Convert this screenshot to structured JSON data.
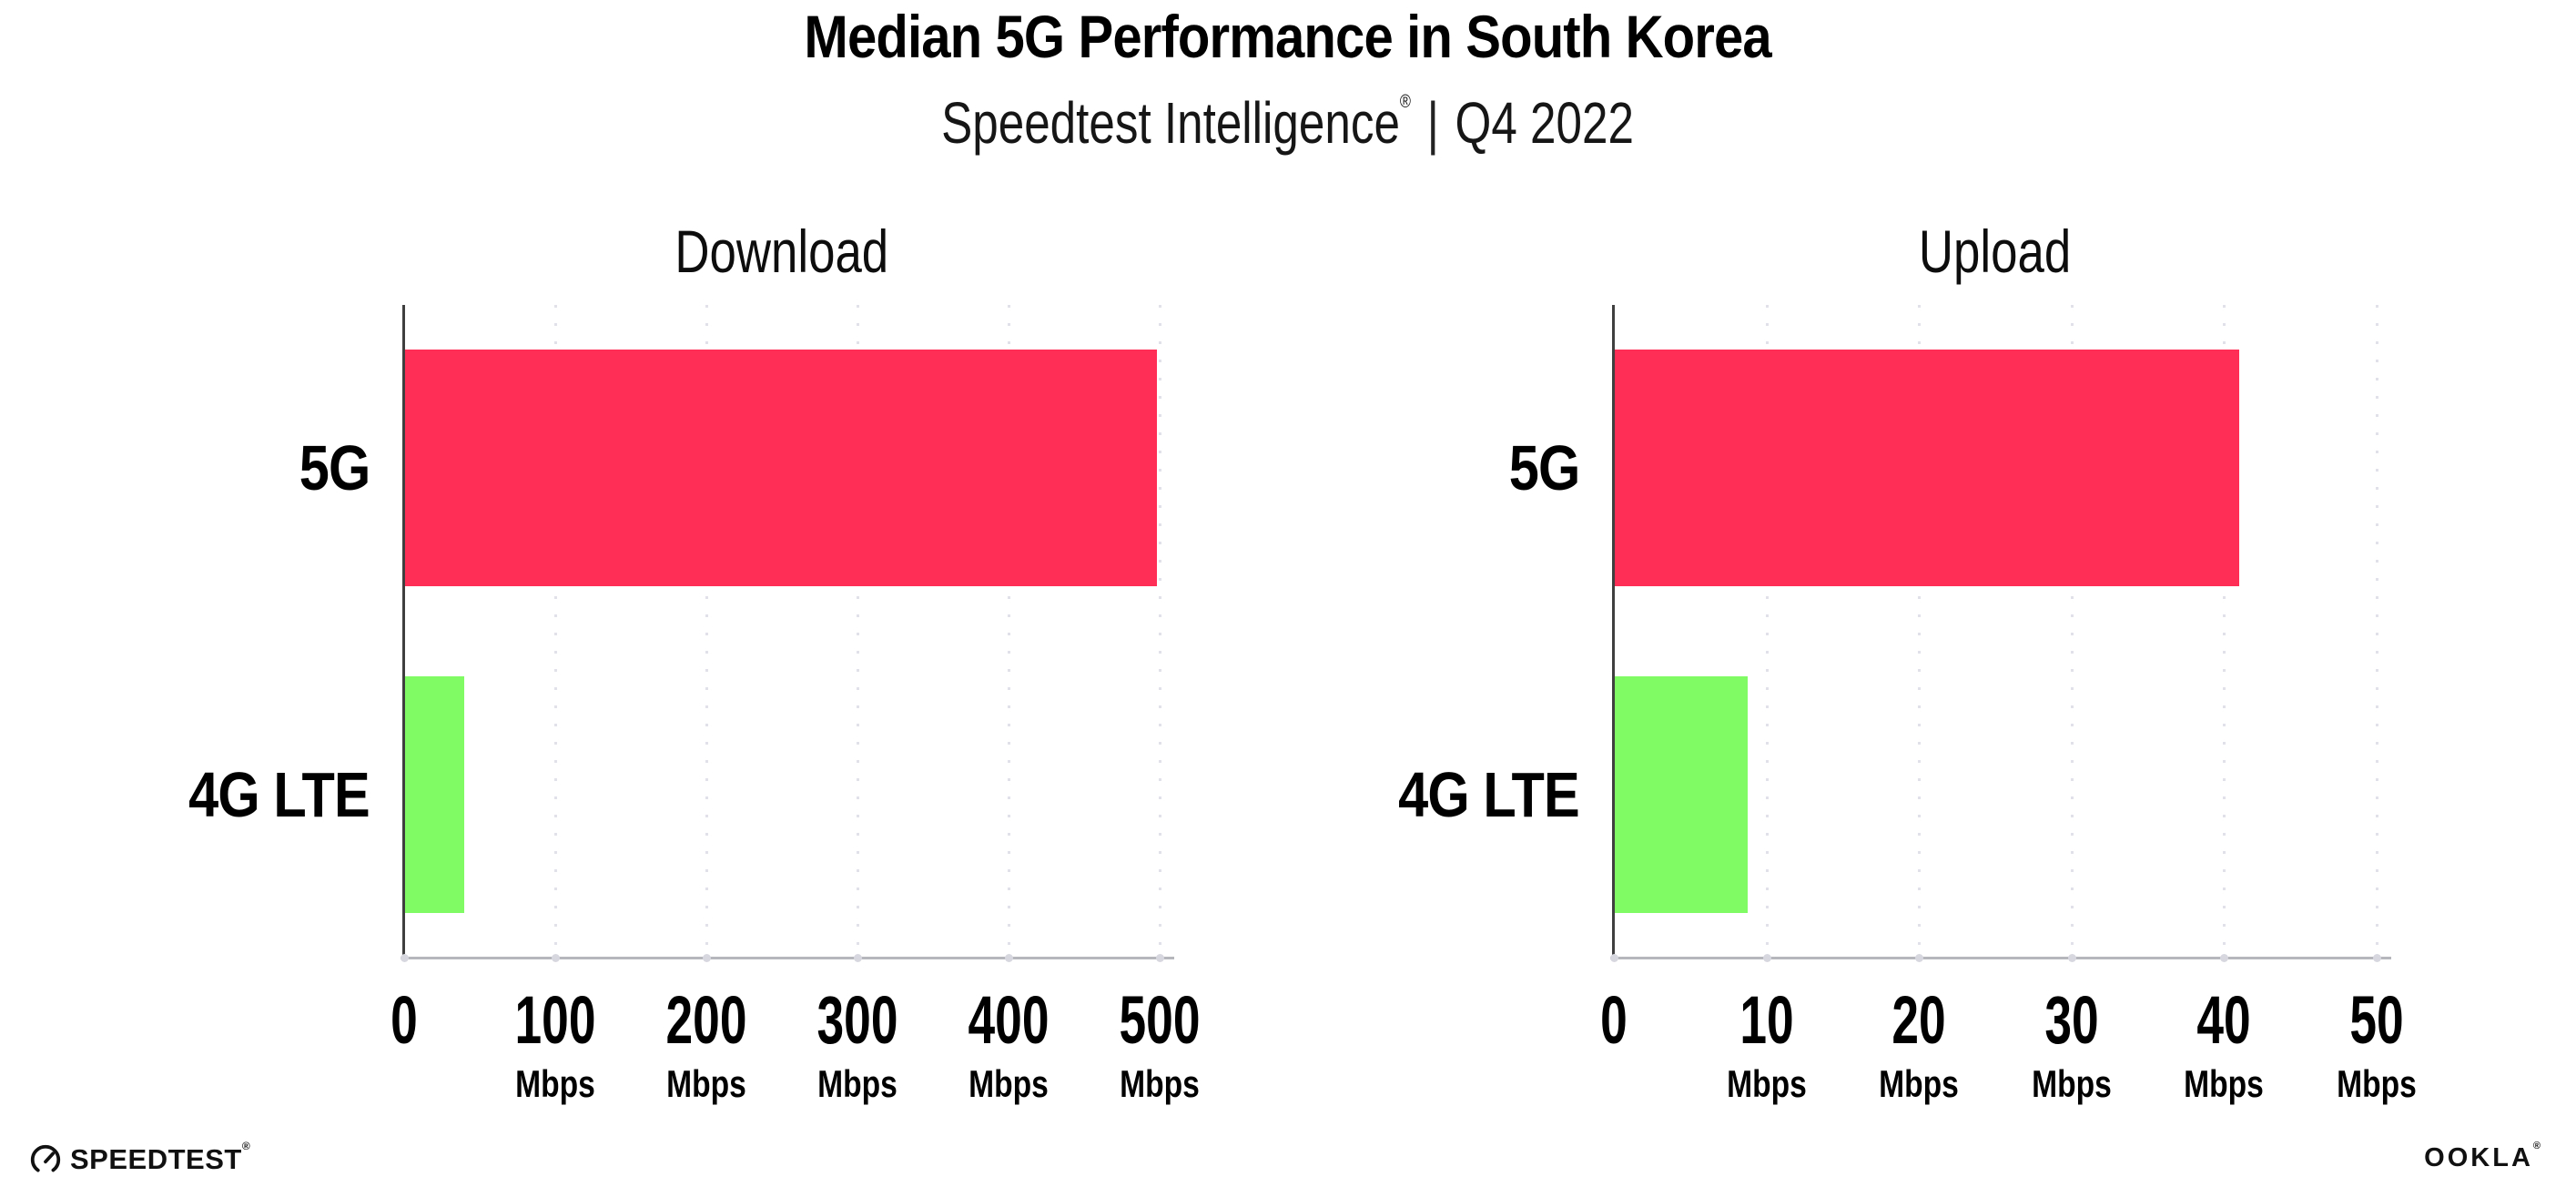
{
  "header": {
    "title": "Median 5G Performance in South Korea",
    "subtitle_brand": "Speedtest Intelligence",
    "subtitle_reg": "®",
    "subtitle_sep": "|",
    "subtitle_period": "Q4 2022"
  },
  "footer": {
    "speedtest_label": "SPEEDTEST",
    "speedtest_mark": "®",
    "ookla_label": "OOKLA",
    "ookla_mark": "®"
  },
  "colors": {
    "bar_5g": "#FF2E57",
    "bar_4g_lte": "#80FB63",
    "gridline": "#e1e1ea",
    "y_axis": "#3f3f3f",
    "x_axis": "#b6b6bd",
    "text": "#000000"
  },
  "chart_data": [
    {
      "type": "bar",
      "orientation": "horizontal",
      "title": "Download",
      "categories": [
        "5G",
        "4G LTE"
      ],
      "values": [
        498,
        40
      ],
      "unit": "Mbps",
      "xlim": [
        0,
        500
      ],
      "xticks": [
        0,
        100,
        200,
        300,
        400,
        500
      ],
      "bar_colors": [
        "#FF2E57",
        "#80FB63"
      ],
      "grid": "dotted-vertical",
      "legend": "none"
    },
    {
      "type": "bar",
      "orientation": "horizontal",
      "title": "Upload",
      "categories": [
        "5G",
        "4G LTE"
      ],
      "values": [
        41,
        8.8
      ],
      "unit": "Mbps",
      "xlim": [
        0,
        50
      ],
      "xticks": [
        0,
        10,
        20,
        30,
        40,
        50
      ],
      "bar_colors": [
        "#FF2E57",
        "#80FB63"
      ],
      "grid": "dotted-vertical",
      "legend": "none"
    }
  ]
}
